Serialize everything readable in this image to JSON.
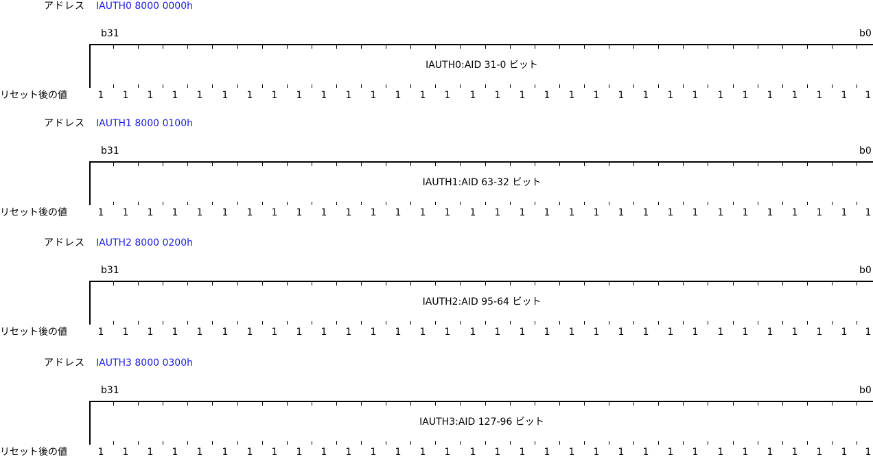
{
  "colors": {
    "address_text": "#1a1ae6",
    "text": "#000000",
    "line": "#000000"
  },
  "registers": [
    {
      "address_label": "アドレス",
      "address_value": "IAUTH0 8000 0000h",
      "msb_label": "b31",
      "lsb_label": "b0",
      "field_name": "IAUTH0:AID 31-0 ビット",
      "reset_label": "リセット後の値",
      "reset_values": [
        "1",
        "1",
        "1",
        "1",
        "1",
        "1",
        "1",
        "1",
        "1",
        "1",
        "1",
        "1",
        "1",
        "1",
        "1",
        "1",
        "1",
        "1",
        "1",
        "1",
        "1",
        "1",
        "1",
        "1",
        "1",
        "1",
        "1",
        "1",
        "1",
        "1",
        "1",
        "1"
      ]
    },
    {
      "address_label": "アドレス",
      "address_value": "IAUTH1 8000 0100h",
      "msb_label": "b31",
      "lsb_label": "b0",
      "field_name": "IAUTH1:AID 63-32 ビット",
      "reset_label": "リセット後の値",
      "reset_values": [
        "1",
        "1",
        "1",
        "1",
        "1",
        "1",
        "1",
        "1",
        "1",
        "1",
        "1",
        "1",
        "1",
        "1",
        "1",
        "1",
        "1",
        "1",
        "1",
        "1",
        "1",
        "1",
        "1",
        "1",
        "1",
        "1",
        "1",
        "1",
        "1",
        "1",
        "1",
        "1"
      ]
    },
    {
      "address_label": "アドレス",
      "address_value": "IAUTH2 8000 0200h",
      "msb_label": "b31",
      "lsb_label": "b0",
      "field_name": "IAUTH2:AID 95-64 ビット",
      "reset_label": "リセット後の値",
      "reset_values": [
        "1",
        "1",
        "1",
        "1",
        "1",
        "1",
        "1",
        "1",
        "1",
        "1",
        "1",
        "1",
        "1",
        "1",
        "1",
        "1",
        "1",
        "1",
        "1",
        "1",
        "1",
        "1",
        "1",
        "1",
        "1",
        "1",
        "1",
        "1",
        "1",
        "1",
        "1",
        "1"
      ]
    },
    {
      "address_label": "アドレス",
      "address_value": "IAUTH3 8000 0300h",
      "msb_label": "b31",
      "lsb_label": "b0",
      "field_name": "IAUTH3:AID 127-96 ビット",
      "reset_label": "リセット後の値",
      "reset_values": [
        "1",
        "1",
        "1",
        "1",
        "1",
        "1",
        "1",
        "1",
        "1",
        "1",
        "1",
        "1",
        "1",
        "1",
        "1",
        "1",
        "1",
        "1",
        "1",
        "1",
        "1",
        "1",
        "1",
        "1",
        "1",
        "1",
        "1",
        "1",
        "1",
        "1",
        "1",
        "1"
      ]
    }
  ]
}
